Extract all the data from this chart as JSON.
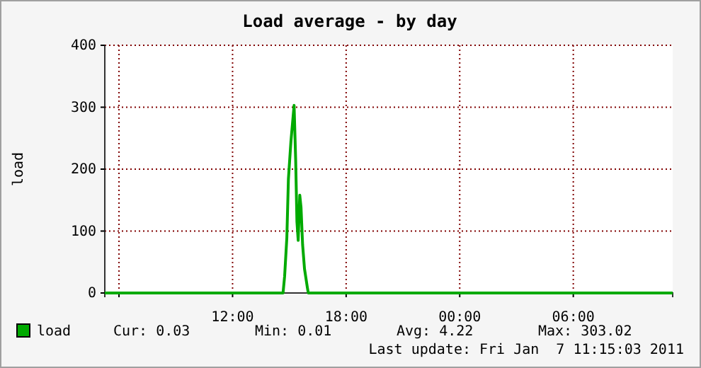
{
  "chart_data": {
    "type": "line",
    "title": "Load average - by day",
    "ylabel": "load",
    "x": [
      "2011-01-06T05:15",
      "2011-01-06T14:40",
      "2011-01-06T14:45",
      "2011-01-06T14:52",
      "2011-01-06T14:57",
      "2011-01-06T15:05",
      "2011-01-06T15:15",
      "2011-01-06T15:20",
      "2011-01-06T15:24",
      "2011-01-06T15:28",
      "2011-01-06T15:33",
      "2011-01-06T15:37",
      "2011-01-06T15:42",
      "2011-01-06T15:48",
      "2011-01-06T15:57",
      "2011-01-06T16:00",
      "2011-01-07T11:15"
    ],
    "series": [
      {
        "name": "load",
        "color": "#00aa00",
        "values": [
          0,
          0,
          27,
          89,
          184,
          245,
          303,
          215,
          115,
          85,
          158,
          138,
          78,
          39,
          9,
          0,
          0
        ]
      }
    ],
    "xlim": [
      "2011-01-06T05:15",
      "2011-01-07T11:15"
    ],
    "xticks": [
      {
        "value": "2011-01-06T06:00",
        "label": null
      },
      {
        "value": "2011-01-06T12:00",
        "label": "12:00"
      },
      {
        "value": "2011-01-06T18:00",
        "label": "18:00"
      },
      {
        "value": "2011-01-07T00:00",
        "label": "00:00"
      },
      {
        "value": "2011-01-07T06:00",
        "label": "06:00"
      }
    ],
    "ylim": [
      0,
      400
    ],
    "yticks": [
      0,
      100,
      200,
      300,
      400
    ],
    "grid": true,
    "legend": "bottom left",
    "annotations": [
      "Cur: 0.03",
      "Min: 0.01",
      "Avg: 4.22",
      "Max: 303.02",
      "Last update: Fri Jan  7 11:15:03 2011"
    ]
  }
}
